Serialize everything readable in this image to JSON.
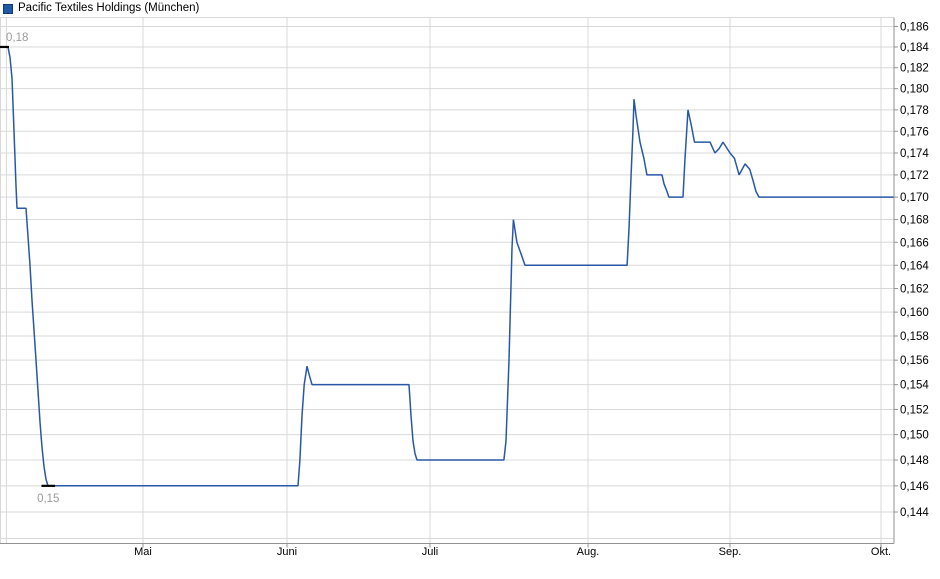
{
  "header": {
    "title": "Pacific Textiles Holdings (München)"
  },
  "colors": {
    "background": "#ffffff",
    "series_line": "#2857a8",
    "legend_square_fill": "#2058a8",
    "legend_square_border": "#15396f",
    "grid": "#d9d9d9",
    "plot_border_light": "#d9d9d9",
    "axis_dark": "#919191",
    "axis_label": "#000000",
    "annotation_text": "#9c9c9c",
    "annotation_dash": "#000000"
  },
  "chart_data": {
    "type": "line",
    "title": "Pacific Textiles Holdings (München)",
    "series_name": "Pacific Textiles Holdings (München)",
    "x_unit": "months, t=0 is 1. April and t=6 is 1. Oktober",
    "x_ticks": [
      {
        "t": 1,
        "label": "Mai"
      },
      {
        "t": 2,
        "label": "Juni"
      },
      {
        "t": 3,
        "label": "Juli"
      },
      {
        "t": 4,
        "label": "Aug."
      },
      {
        "t": 5,
        "label": "Sep."
      },
      {
        "t": 6,
        "label": "Okt."
      }
    ],
    "x_minor_ticks": [
      0.045
    ],
    "xlim": [
      0,
      6.083
    ],
    "y_axis": {
      "scale": "log",
      "tick_step": 0.002,
      "label_min": 0.144,
      "label_max": 0.186,
      "unlabeled_gridlines": [
        0.142
      ],
      "number_format": "comma-decimal, 3 places",
      "ylim": [
        0.14163,
        0.18688
      ]
    },
    "legend_position": "top-left-title",
    "grid": true,
    "series": [
      {
        "name": "Pacific Textiles Holdings (München)",
        "points": [
          [
            0,
            0.184
          ],
          [
            0.056,
            0.184
          ],
          [
            0.07,
            0.183
          ],
          [
            0.084,
            0.181
          ],
          [
            0.091,
            0.1785
          ],
          [
            0.098,
            0.176
          ],
          [
            0.105,
            0.1735
          ],
          [
            0.112,
            0.171
          ],
          [
            0.119,
            0.169
          ],
          [
            0.182,
            0.169
          ],
          [
            0.196,
            0.1665
          ],
          [
            0.21,
            0.164
          ],
          [
            0.224,
            0.161
          ],
          [
            0.238,
            0.1585
          ],
          [
            0.252,
            0.156
          ],
          [
            0.266,
            0.1535
          ],
          [
            0.28,
            0.151
          ],
          [
            0.294,
            0.149
          ],
          [
            0.308,
            0.1475
          ],
          [
            0.322,
            0.1465
          ],
          [
            0.336,
            0.146
          ],
          [
            2.077,
            0.146
          ],
          [
            2.09,
            0.148
          ],
          [
            2.105,
            0.1515
          ],
          [
            2.12,
            0.154
          ],
          [
            2.14,
            0.1555
          ],
          [
            2.155,
            0.1548
          ],
          [
            2.175,
            0.154
          ],
          [
            2.853,
            0.154
          ],
          [
            2.867,
            0.1515
          ],
          [
            2.881,
            0.1495
          ],
          [
            2.895,
            0.1485
          ],
          [
            2.909,
            0.148
          ],
          [
            3.468,
            0.148
          ],
          [
            3.481,
            0.1495
          ],
          [
            3.5,
            0.156
          ],
          [
            3.519,
            0.1655
          ],
          [
            3.528,
            0.168
          ],
          [
            3.55,
            0.166
          ],
          [
            3.576,
            0.165
          ],
          [
            3.601,
            0.164
          ],
          [
            4.275,
            0.164
          ],
          [
            4.289,
            0.1672
          ],
          [
            4.303,
            0.1718
          ],
          [
            4.317,
            0.1762
          ],
          [
            4.324,
            0.179
          ],
          [
            4.338,
            0.1775
          ],
          [
            4.366,
            0.175
          ],
          [
            4.394,
            0.1735
          ],
          [
            4.415,
            0.172
          ],
          [
            4.521,
            0.172
          ],
          [
            4.535,
            0.1712
          ],
          [
            4.556,
            0.1705
          ],
          [
            4.57,
            0.17
          ],
          [
            4.669,
            0.17
          ],
          [
            4.683,
            0.1735
          ],
          [
            4.704,
            0.178
          ],
          [
            4.728,
            0.1765
          ],
          [
            4.75,
            0.175
          ],
          [
            4.859,
            0.175
          ],
          [
            4.894,
            0.174
          ],
          [
            4.923,
            0.1744
          ],
          [
            4.951,
            0.175
          ],
          [
            5.0,
            0.174
          ],
          [
            5.03,
            0.1735
          ],
          [
            5.06,
            0.172
          ],
          [
            5.1,
            0.173
          ],
          [
            5.131,
            0.1725
          ],
          [
            5.152,
            0.1715
          ],
          [
            5.172,
            0.1705
          ],
          [
            5.192,
            0.17
          ],
          [
            6.083,
            0.17
          ]
        ]
      }
    ],
    "annotations": [
      {
        "label": "0,18",
        "value": 0.184,
        "t_start": 0,
        "t_end": 0.063,
        "placement": "above"
      },
      {
        "label": "0,15",
        "value": 0.146,
        "t_start": 0.29,
        "t_end": 0.385,
        "placement": "below"
      }
    ]
  }
}
